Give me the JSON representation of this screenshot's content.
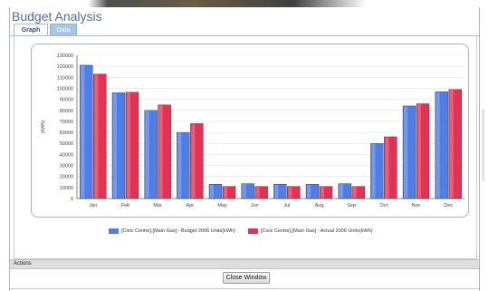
{
  "window": {
    "title": "Budget Analysis"
  },
  "tabs": [
    {
      "label": "Graph",
      "active": true
    },
    {
      "label": "Data",
      "active": false
    }
  ],
  "actions": {
    "label": "Actions",
    "close_button": "Close Window"
  },
  "colors": {
    "budget": "#4f7ee6",
    "actual": "#e23355",
    "accent": "#4a6fa0"
  },
  "chart_data": {
    "type": "bar",
    "categories": [
      "Jan",
      "Feb",
      "Mar",
      "Apr",
      "May",
      "Jun",
      "Jul",
      "Aug",
      "Sep",
      "Oct",
      "Nov",
      "Dec"
    ],
    "series": [
      {
        "name": "[Civic Centre].[Main Gas] - Budget 2006 Units(kWh)",
        "values": [
          121000,
          96000,
          80000,
          60000,
          13000,
          13500,
          13000,
          13000,
          13500,
          50000,
          84000,
          97000
        ]
      },
      {
        "name": "[Civic Centre].[Main Gas] - Actual 2006 Units(kWh)",
        "values": [
          113000,
          96500,
          85000,
          68000,
          11000,
          11000,
          11000,
          11000,
          11000,
          56000,
          86000,
          99000
        ]
      }
    ],
    "ylabel": "(kWh)",
    "ylim": [
      0,
      130000
    ],
    "yticks": [
      "0",
      "10000",
      "20000",
      "30000",
      "40000",
      "50000",
      "60000",
      "70000",
      "80000",
      "90000",
      "100000",
      "110000",
      "120000",
      "130000"
    ],
    "grid": true,
    "legend": "bottom"
  }
}
